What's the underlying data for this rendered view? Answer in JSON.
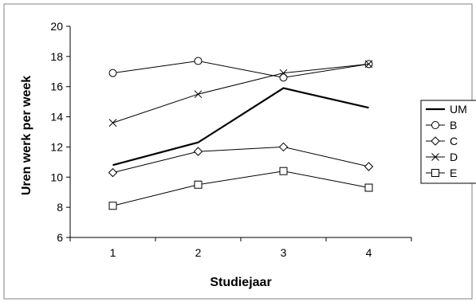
{
  "chart_data": {
    "type": "line",
    "title": "",
    "xlabel": "Studiejaar",
    "ylabel": "Uren werk per week",
    "categories": [
      "1",
      "2",
      "3",
      "4"
    ],
    "ylim": [
      6,
      20
    ],
    "yticks": [
      "6",
      "8",
      "10",
      "12",
      "14",
      "16",
      "18",
      "20"
    ],
    "grid": false,
    "legend": "right",
    "series": [
      {
        "name": "UM",
        "marker": "none",
        "values": [
          10.8,
          12.3,
          15.9,
          14.6
        ]
      },
      {
        "name": "B",
        "marker": "circle",
        "values": [
          16.9,
          17.7,
          16.6,
          17.5
        ]
      },
      {
        "name": "C",
        "marker": "diamond",
        "values": [
          10.3,
          11.7,
          12.0,
          10.7
        ]
      },
      {
        "name": "D",
        "marker": "cross",
        "values": [
          13.6,
          15.5,
          16.9,
          17.5
        ]
      },
      {
        "name": "E",
        "marker": "square",
        "values": [
          8.1,
          9.5,
          10.4,
          9.3
        ]
      }
    ],
    "colors": {
      "line": "#000000",
      "background": "#ffffff"
    }
  }
}
